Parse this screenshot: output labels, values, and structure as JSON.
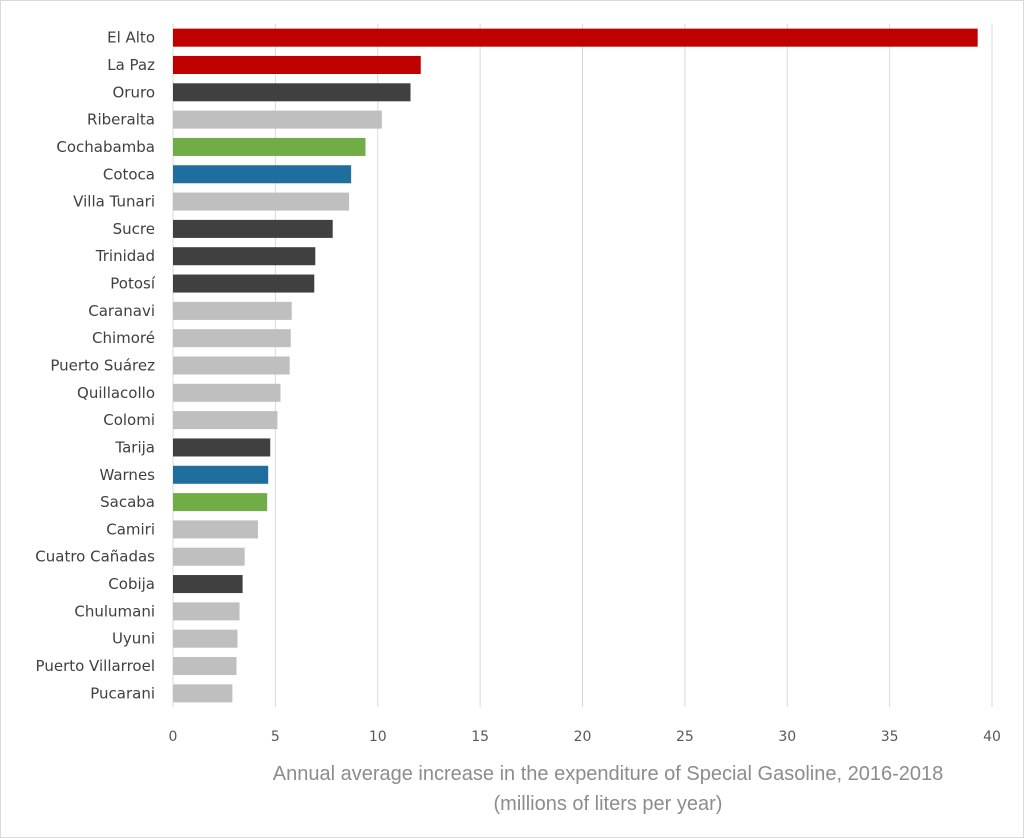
{
  "chart_data": {
    "type": "bar",
    "orientation": "horizontal",
    "categories": [
      "El Alto",
      "La Paz",
      "Oruro",
      "Riberalta",
      "Cochabamba",
      "Cotoca",
      "Villa Tunari",
      "Sucre",
      "Trinidad",
      "Potosí",
      "Caranavi",
      "Chimoré",
      "Puerto Suárez",
      "Quillacollo",
      "Colomi",
      "Tarija",
      "Warnes",
      "Sacaba",
      "Camiri",
      "Cuatro Cañadas",
      "Cobija",
      "Chulumani",
      "Uyuni",
      "Puerto Villarroel",
      "Pucarani"
    ],
    "values": [
      39.3,
      12.1,
      11.6,
      10.2,
      9.4,
      8.7,
      8.6,
      7.8,
      6.95,
      6.9,
      5.8,
      5.75,
      5.7,
      5.25,
      5.1,
      4.75,
      4.65,
      4.6,
      4.15,
      3.5,
      3.4,
      3.25,
      3.15,
      3.1,
      2.9
    ],
    "bar_colors": [
      "#c00000",
      "#c00000",
      "#404040",
      "#bfbfbf",
      "#70ad47",
      "#1f6e9e",
      "#bfbfbf",
      "#404040",
      "#404040",
      "#404040",
      "#bfbfbf",
      "#bfbfbf",
      "#bfbfbf",
      "#bfbfbf",
      "#bfbfbf",
      "#404040",
      "#1f6e9e",
      "#70ad47",
      "#bfbfbf",
      "#bfbfbf",
      "#404040",
      "#bfbfbf",
      "#bfbfbf",
      "#bfbfbf",
      "#bfbfbf"
    ],
    "xticks": [
      0,
      5,
      10,
      15,
      20,
      25,
      30,
      35,
      40
    ],
    "xlim": [
      0,
      40
    ],
    "xlabel_line1": "Annual average increase in the expenditure of Special Gasoline, 2016-2018",
    "xlabel_line2": "(millions of liters per year)",
    "grid": "vertical",
    "legend": "none"
  }
}
